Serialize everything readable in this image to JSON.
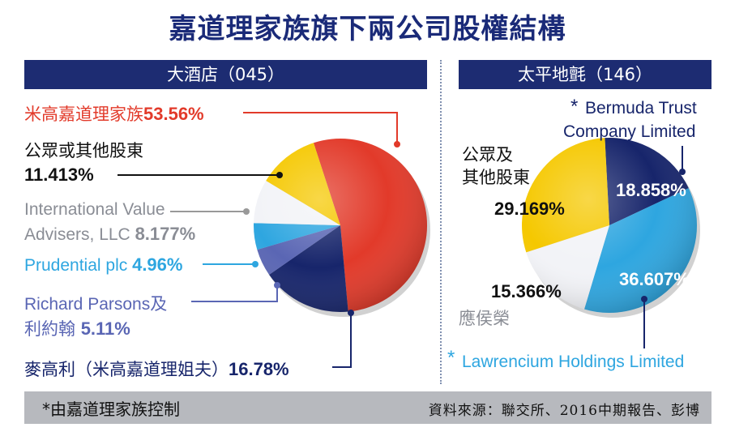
{
  "title": "嘉道理家族旗下兩公司股權結構",
  "left_header": "大酒店（045）",
  "right_header": "太平地氈（146）",
  "footer": {
    "note": "*由嘉道理家族控制",
    "source": "資料來源：聯交所、2016中期報告、彭博"
  },
  "labels": {
    "l_kadoorie_name": "米高嘉道理家族",
    "l_kadoorie_val": "53.56%",
    "l_public_name": "公眾或其他股東",
    "l_public_val": "11.413%",
    "l_iva_line1": "International Value",
    "l_iva_line2": "Advisers, LLC ",
    "l_iva_val": "8.177%",
    "l_pru_name": "Prudential plc ",
    "l_pru_val": "4.96%",
    "l_rp_line1": "Richard Parsons及",
    "l_rp_line2": "利約翰 ",
    "l_rp_val": "5.11%",
    "l_mac_name": "麥高利（米高嘉道理姐夫）",
    "l_mac_val": "16.78%",
    "r_bermuda_star": "*",
    "r_bermuda_line1": "Bermuda Trust",
    "r_bermuda_line2": "Company Limited",
    "r_bermuda_val": "18.858%",
    "r_public_line1": "公眾及",
    "r_public_line2": "其他股東",
    "r_public_val": "29.169%",
    "r_ying_val": "15.366%",
    "r_ying_name": "應侯榮",
    "r_law_val": "36.607%",
    "r_law_star": "*",
    "r_law_name": "Lawrencium Holdings Limited"
  },
  "colors": {
    "title": "#1a2a78",
    "header_bg": "#1d2c72",
    "red": "#e23a2a",
    "navy": "#17256b",
    "yellow": "#f5c800",
    "white_slice": "#f2f3f7",
    "light_blue": "#2ea6e0",
    "purple": "#5a66b4",
    "gray_text": "#8a8d95",
    "footer_bg": "#b7b9be"
  },
  "chart_data": [
    {
      "type": "pie",
      "title": "大酒店（045）",
      "slices": [
        {
          "name": "米高嘉道理家族",
          "value": 53.56,
          "color": "#e23a2a"
        },
        {
          "name": "麥高利（米高嘉道理姐夫）",
          "value": 16.78,
          "color": "#17256b"
        },
        {
          "name": "Richard Parsons及利約翰",
          "value": 5.11,
          "color": "#5a66b4"
        },
        {
          "name": "Prudential plc",
          "value": 4.96,
          "color": "#2ea6e0"
        },
        {
          "name": "International Value Advisers, LLC",
          "value": 8.177,
          "color": "#f2f3f7"
        },
        {
          "name": "公眾或其他股東",
          "value": 11.413,
          "color": "#f5c800"
        }
      ]
    },
    {
      "type": "pie",
      "title": "太平地氈（146）",
      "slices": [
        {
          "name": "Bermuda Trust Company Limited",
          "value": 18.858,
          "color": "#17256b"
        },
        {
          "name": "Lawrencium Holdings Limited",
          "value": 36.607,
          "color": "#2ea6e0"
        },
        {
          "name": "應侯榮",
          "value": 15.366,
          "color": "#f2f3f7"
        },
        {
          "name": "公眾及其他股東",
          "value": 29.169,
          "color": "#f5c800"
        }
      ]
    }
  ]
}
